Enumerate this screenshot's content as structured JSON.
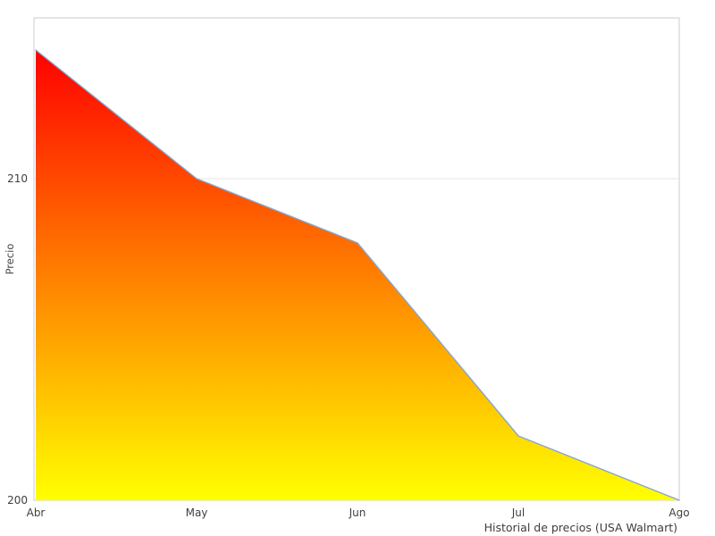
{
  "chart_data": {
    "type": "area",
    "x": [
      "Abr",
      "May",
      "Jun",
      "Jul",
      "Ago"
    ],
    "values": [
      214,
      210,
      208,
      202,
      200
    ],
    "title": "",
    "xlabel": "",
    "ylabel": "Precio",
    "caption": "Historial de precios (USA Walmart)",
    "ylim": [
      200,
      215
    ],
    "yticks": [
      200,
      210
    ],
    "grid": "horizontal",
    "legend": "none",
    "colors": {
      "gradient_top": "#ff0000",
      "gradient_bottom": "#ffff00",
      "line": "#87a5cc",
      "gridline": "#e6e6e6",
      "border": "#d5d5d5",
      "text": "#3f3f3f"
    }
  }
}
